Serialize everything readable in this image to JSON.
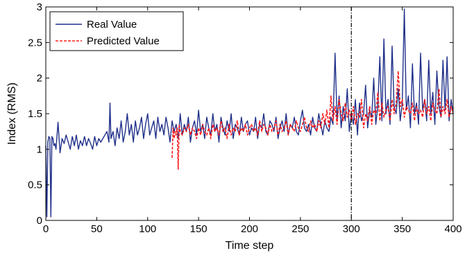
{
  "chart_data": {
    "type": "line",
    "xlabel": "Time step",
    "ylabel": "Index (RMS)",
    "xlim": [
      0,
      400
    ],
    "ylim": [
      0,
      3
    ],
    "xticks": [
      0,
      50,
      100,
      150,
      200,
      250,
      300,
      350,
      400
    ],
    "yticks": [
      0,
      0.5,
      1,
      1.5,
      2,
      2.5,
      3
    ],
    "grid": false,
    "legend": "top-left",
    "vline": {
      "x": 300,
      "style": "dash-dot",
      "color": "#000000"
    },
    "series": [
      {
        "name": "Real Value",
        "color": "#1f2f8a",
        "style": "solid",
        "x": [
          0,
          1,
          2,
          3,
          4,
          5,
          6,
          7,
          8,
          9,
          10,
          12,
          14,
          16,
          18,
          20,
          22,
          24,
          26,
          28,
          30,
          32,
          34,
          36,
          38,
          40,
          42,
          44,
          46,
          48,
          50,
          52,
          54,
          56,
          58,
          60,
          62,
          63,
          64,
          66,
          68,
          70,
          72,
          74,
          76,
          78,
          80,
          82,
          84,
          86,
          88,
          90,
          92,
          94,
          96,
          98,
          100,
          102,
          104,
          106,
          108,
          110,
          112,
          114,
          116,
          118,
          120,
          122,
          124,
          126,
          128,
          130,
          132,
          134,
          136,
          138,
          140,
          142,
          144,
          146,
          148,
          150,
          152,
          154,
          156,
          158,
          160,
          162,
          164,
          166,
          168,
          170,
          172,
          174,
          176,
          178,
          180,
          182,
          184,
          186,
          188,
          190,
          192,
          194,
          196,
          198,
          200,
          202,
          204,
          206,
          208,
          210,
          212,
          214,
          216,
          218,
          220,
          222,
          224,
          226,
          228,
          230,
          232,
          234,
          236,
          238,
          240,
          242,
          244,
          246,
          248,
          250,
          252,
          254,
          256,
          258,
          260,
          262,
          264,
          266,
          268,
          270,
          272,
          274,
          276,
          278,
          280,
          282,
          284,
          286,
          288,
          290,
          292,
          294,
          296,
          298,
          300,
          302,
          304,
          306,
          308,
          310,
          312,
          314,
          316,
          318,
          320,
          322,
          324,
          326,
          328,
          330,
          332,
          334,
          336,
          338,
          340,
          342,
          344,
          346,
          348,
          350,
          352,
          354,
          356,
          358,
          360,
          362,
          364,
          366,
          368,
          370,
          372,
          374,
          376,
          378,
          380,
          382,
          384,
          386,
          388,
          390,
          392,
          394,
          396,
          398,
          400
        ],
        "y": [
          1.05,
          0.05,
          1.1,
          1.18,
          1.15,
          0.05,
          1.18,
          1.15,
          1.05,
          1.08,
          1.0,
          1.38,
          0.95,
          1.15,
          1.08,
          1.2,
          1.1,
          1.0,
          1.18,
          1.05,
          1.2,
          1.0,
          1.12,
          1.05,
          1.18,
          1.05,
          1.15,
          1.08,
          1.0,
          1.18,
          1.05,
          1.15,
          1.1,
          1.15,
          1.2,
          1.25,
          1.1,
          1.65,
          1.15,
          1.25,
          1.05,
          1.3,
          1.15,
          1.4,
          1.1,
          1.25,
          1.5,
          1.2,
          1.35,
          1.1,
          1.4,
          1.2,
          1.3,
          1.45,
          1.15,
          1.35,
          1.5,
          1.2,
          1.3,
          1.4,
          1.15,
          1.45,
          1.25,
          1.35,
          1.2,
          1.45,
          1.3,
          1.1,
          1.4,
          1.25,
          1.35,
          1.15,
          1.5,
          1.2,
          1.35,
          1.25,
          1.45,
          1.1,
          1.3,
          1.4,
          1.2,
          1.55,
          1.25,
          1.35,
          1.15,
          1.45,
          1.3,
          1.2,
          1.5,
          1.25,
          1.35,
          1.1,
          1.45,
          1.3,
          1.2,
          1.4,
          1.25,
          1.5,
          1.15,
          1.35,
          1.3,
          1.2,
          1.45,
          1.25,
          1.35,
          1.4,
          1.2,
          1.3,
          1.25,
          1.45,
          1.15,
          1.35,
          1.3,
          1.5,
          1.25,
          1.2,
          1.4,
          1.35,
          1.25,
          1.45,
          1.15,
          1.3,
          1.4,
          1.25,
          1.5,
          1.2,
          1.35,
          1.3,
          1.45,
          1.25,
          1.2,
          1.4,
          1.55,
          1.3,
          1.25,
          1.35,
          1.2,
          1.45,
          1.3,
          1.25,
          1.5,
          1.35,
          1.2,
          1.4,
          1.3,
          1.25,
          1.45,
          1.35,
          2.35,
          1.4,
          1.75,
          1.3,
          1.6,
          1.4,
          1.85,
          1.25,
          1.5,
          1.35,
          1.7,
          1.2,
          1.65,
          1.4,
          1.5,
          1.9,
          1.3,
          1.55,
          1.45,
          2.0,
          1.35,
          1.6,
          2.3,
          1.4,
          2.55,
          1.5,
          1.7,
          1.35,
          2.45,
          1.6,
          1.5,
          1.85,
          1.4,
          1.65,
          2.97,
          1.55,
          1.75,
          1.3,
          2.2,
          1.5,
          1.65,
          1.35,
          2.35,
          1.55,
          1.7,
          1.4,
          2.25,
          1.5,
          1.8,
          1.35,
          2.1,
          1.6,
          1.45,
          2.25,
          1.55,
          2.3,
          1.4,
          1.7,
          1.5
        ]
      },
      {
        "name": "Predicted Value",
        "color": "#ff1a1a",
        "style": "dashed",
        "x": [
          124,
          125,
          126,
          127,
          128,
          129,
          130,
          131,
          132,
          134,
          136,
          138,
          140,
          142,
          144,
          146,
          148,
          150,
          152,
          154,
          156,
          158,
          160,
          162,
          164,
          166,
          168,
          170,
          172,
          174,
          176,
          178,
          180,
          182,
          184,
          186,
          188,
          190,
          192,
          194,
          196,
          198,
          200,
          202,
          204,
          206,
          208,
          210,
          212,
          214,
          216,
          218,
          220,
          222,
          224,
          226,
          228,
          230,
          232,
          234,
          236,
          238,
          240,
          242,
          244,
          246,
          248,
          250,
          252,
          254,
          256,
          258,
          260,
          262,
          264,
          266,
          268,
          270,
          272,
          274,
          276,
          278,
          280,
          282,
          284,
          286,
          288,
          290,
          292,
          294,
          296,
          298,
          300,
          302,
          304,
          306,
          308,
          310,
          312,
          314,
          316,
          318,
          320,
          322,
          324,
          326,
          328,
          330,
          332,
          334,
          336,
          338,
          340,
          342,
          344,
          346,
          348,
          350,
          352,
          354,
          356,
          358,
          360,
          362,
          364,
          366,
          368,
          370,
          372,
          374,
          376,
          378,
          380,
          382,
          384,
          386,
          388,
          390,
          392,
          394,
          396,
          398,
          400
        ],
        "y": [
          0.88,
          1.3,
          1.15,
          1.25,
          1.2,
          1.3,
          0.72,
          1.35,
          1.25,
          1.2,
          1.3,
          1.25,
          1.35,
          1.2,
          1.3,
          1.25,
          1.15,
          1.3,
          1.2,
          1.35,
          1.25,
          1.2,
          1.3,
          1.15,
          1.35,
          1.25,
          1.3,
          1.2,
          1.4,
          1.25,
          1.3,
          1.15,
          1.35,
          1.2,
          1.3,
          1.25,
          1.4,
          1.2,
          1.3,
          1.25,
          1.35,
          1.2,
          1.3,
          1.35,
          1.25,
          1.3,
          1.2,
          1.4,
          1.25,
          1.35,
          1.3,
          1.2,
          1.35,
          1.25,
          1.3,
          1.4,
          1.2,
          1.35,
          1.25,
          1.3,
          1.4,
          1.2,
          1.35,
          1.3,
          1.25,
          1.4,
          1.3,
          1.25,
          1.35,
          1.45,
          1.3,
          1.25,
          1.4,
          1.3,
          1.35,
          1.25,
          1.4,
          1.3,
          1.5,
          1.35,
          1.55,
          1.3,
          1.75,
          1.4,
          1.6,
          1.35,
          1.7,
          1.5,
          1.4,
          1.65,
          1.45,
          1.55,
          1.4,
          1.6,
          1.35,
          1.5,
          1.45,
          1.7,
          1.3,
          1.5,
          1.4,
          1.6,
          1.35,
          1.55,
          1.5,
          1.8,
          1.4,
          1.65,
          1.45,
          1.55,
          1.6,
          1.4,
          1.7,
          1.5,
          1.65,
          2.1,
          1.6,
          1.7,
          1.45,
          1.6,
          1.55,
          1.5,
          1.65,
          1.4,
          1.6,
          1.5,
          1.55,
          1.45,
          1.7,
          1.5,
          1.6,
          1.4,
          1.65,
          1.55,
          1.5,
          1.85,
          1.45,
          1.6,
          1.5,
          1.7,
          1.45,
          1.6,
          1.5
        ]
      }
    ]
  }
}
